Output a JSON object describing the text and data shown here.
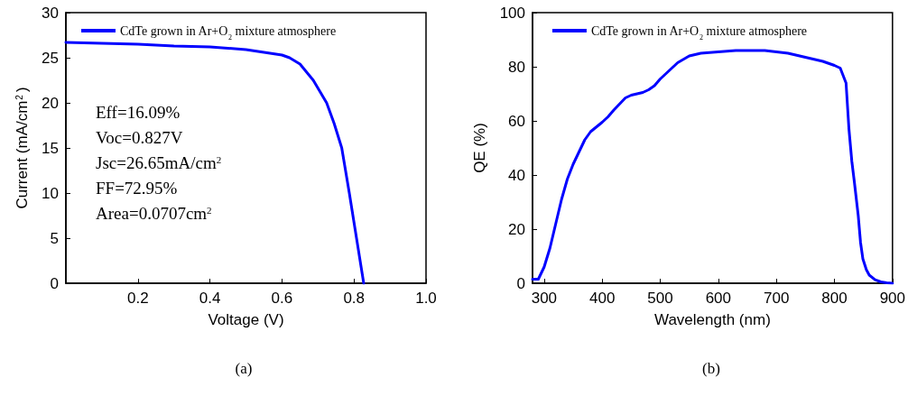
{
  "chart_data": [
    {
      "type": "line",
      "xlabel": "Voltage (V)",
      "ylabel": "Current (mA/cm$^{2}$)",
      "xlim": [
        0,
        1
      ],
      "xticks": [
        0.2,
        0.4,
        0.6,
        0.8,
        {
          "value": 1,
          "label": "1.0"
        }
      ],
      "ylim": [
        0,
        30
      ],
      "yticks": [
        0,
        5,
        10,
        15,
        20,
        25,
        30
      ],
      "legend": "top left",
      "grid": false,
      "marker": "none",
      "line_style": "solid",
      "annotations": [
        "Eff=16.09%",
        "Voc=0.827V",
        "Jsc=26.65mA/cm$^{2}$",
        "FF=72.95%",
        "Area=0.0707cm$^{2}$",
        "(a)"
      ],
      "series": [
        {
          "name": "CdTe grown in Ar+O$_{2}$ mixture atmosphere",
          "color": "#0000ff",
          "x": [
            0,
            0.1,
            0.2,
            0.3,
            0.4,
            0.5,
            0.55,
            0.6,
            0.621,
            0.65,
            0.687,
            0.724,
            0.745,
            0.766,
            0.787,
            0.807,
            0.827
          ],
          "values": [
            26.7,
            26.6,
            26.5,
            26.3,
            26.2,
            25.9,
            25.6,
            25.3,
            25,
            24.3,
            22.5,
            20,
            17.7,
            15,
            10,
            5,
            0
          ]
        }
      ]
    },
    {
      "type": "line",
      "xlabel": "Wavelength (nm)",
      "ylabel": "QE (%)",
      "xlim": [
        280,
        900
      ],
      "xticks": [
        300,
        400,
        500,
        600,
        700,
        800,
        900
      ],
      "ylim": [
        0,
        100
      ],
      "yticks": [
        0,
        20,
        40,
        60,
        80,
        100
      ],
      "legend": "top",
      "grid": false,
      "marker": "none",
      "line_style": "solid",
      "annotations": [
        "(b)"
      ],
      "series": [
        {
          "name": "CdTe grown in Ar+O$_{2}$ mixture atmosphere",
          "color": "#0000ff",
          "x": [
            280,
            290,
            300,
            310,
            320,
            330,
            340,
            350,
            360,
            370,
            380,
            400,
            410,
            420,
            440,
            450,
            470,
            480,
            490,
            500,
            520,
            530,
            550,
            570,
            600,
            630,
            650,
            680,
            700,
            720,
            750,
            780,
            800,
            810,
            820,
            825,
            830,
            834,
            841,
            845,
            849,
            855,
            860,
            870,
            880,
            890,
            900
          ],
          "values": [
            1.5,
            1.5,
            6,
            13,
            22,
            31,
            38.5,
            44,
            48.5,
            53,
            56,
            59.5,
            61.5,
            64,
            68.5,
            69.5,
            70.5,
            71.5,
            73,
            75.5,
            79.5,
            81.5,
            84,
            85,
            85.5,
            86,
            86,
            86,
            85.5,
            85,
            83.5,
            82,
            80.5,
            79.5,
            74,
            57,
            45,
            38,
            25,
            15,
            9,
            5,
            3,
            1.3,
            0.5,
            0.2,
            0
          ]
        }
      ]
    }
  ]
}
